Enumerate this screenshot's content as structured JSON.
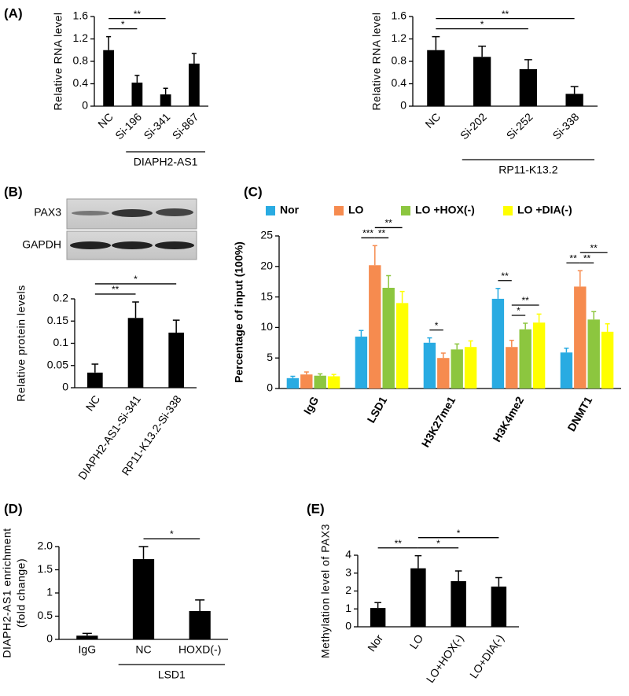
{
  "chart_data": [
    {
      "type": "bar",
      "panel": "(A)",
      "y_label": "Relative RNA level",
      "color": "#000000",
      "categories": [
        "NC",
        "Si-196",
        "Si-341",
        "Si-867"
      ],
      "values": [
        1.0,
        0.42,
        0.21,
        0.76
      ],
      "errors": [
        0.24,
        0.13,
        0.11,
        0.18
      ],
      "ylim": [
        0,
        1.6
      ],
      "yticks": [
        0,
        0.4,
        0.8,
        1.2,
        1.6
      ],
      "groups": [
        {
          "label": "DIAPH2-AS1",
          "span": [
            1,
            3
          ]
        }
      ],
      "annotations": [
        {
          "text": "*",
          "between": [
            0,
            1
          ]
        },
        {
          "text": "**",
          "between": [
            0,
            2
          ]
        }
      ]
    },
    {
      "type": "bar",
      "y_label": "Relative RNA level",
      "color": "#000000",
      "categories": [
        "NC",
        "Si-202",
        "Si-252",
        "Si-338"
      ],
      "values": [
        1.0,
        0.88,
        0.66,
        0.22
      ],
      "errors": [
        0.24,
        0.19,
        0.17,
        0.13
      ],
      "ylim": [
        0,
        1.6
      ],
      "yticks": [
        0,
        0.4,
        0.8,
        1.2,
        1.6
      ],
      "groups": [
        {
          "label": "RP11-K13.2",
          "span": [
            1,
            3
          ]
        }
      ],
      "annotations": [
        {
          "text": "*",
          "between": [
            0,
            2
          ]
        },
        {
          "text": "**",
          "between": [
            0,
            3
          ]
        }
      ]
    },
    {
      "type": "bar",
      "panel": "(B)",
      "y_label": "Relative protein levels",
      "color": "#000000",
      "blot_labels": [
        "PAX3",
        "GAPDH"
      ],
      "categories": [
        "NC",
        "DIAPH2-AS1-Si-341",
        "RP11-K13.2-Si-338"
      ],
      "values": [
        0.034,
        0.157,
        0.124
      ],
      "errors": [
        0.019,
        0.036,
        0.028
      ],
      "ylim": [
        0,
        0.2
      ],
      "yticks": [
        0,
        0.05,
        0.1,
        0.15,
        0.2
      ],
      "annotations": [
        {
          "text": "**",
          "between": [
            0,
            1
          ]
        },
        {
          "text": "*",
          "between": [
            0,
            2
          ]
        }
      ]
    },
    {
      "type": "grouped_bar",
      "panel": "(C)",
      "y_label": "Percentage of input (100%)",
      "categories": [
        "IgG",
        "LSD1",
        "H3K27me1",
        "H3K4me2",
        "DNMT1"
      ],
      "series": [
        {
          "name": "Nor",
          "color": "#29abe2",
          "values": [
            1.7,
            8.5,
            7.5,
            14.7,
            5.9
          ],
          "errors": [
            0.3,
            1.0,
            0.8,
            1.7,
            0.7
          ]
        },
        {
          "name": "LO",
          "color": "#f68b4f",
          "values": [
            2.3,
            20.2,
            5.0,
            6.8,
            16.7
          ],
          "errors": [
            0.4,
            3.2,
            0.8,
            1.1,
            2.6
          ]
        },
        {
          "name": "LO +HOX(-)",
          "color": "#8cc63f",
          "values": [
            2.1,
            16.5,
            6.4,
            9.7,
            11.3
          ],
          "errors": [
            0.3,
            2.0,
            0.9,
            1.0,
            1.3
          ]
        },
        {
          "name": "LO +DIA(-)",
          "color": "#ffff00",
          "values": [
            2.0,
            14.0,
            6.8,
            10.8,
            9.3
          ],
          "errors": [
            0.3,
            1.9,
            1.0,
            1.4,
            1.3
          ]
        }
      ],
      "ylim": [
        0,
        25
      ],
      "yticks": [
        0,
        5,
        10,
        15,
        20,
        25
      ],
      "annotations": [
        {
          "text": "***",
          "category": 1,
          "between": [
            0,
            1
          ]
        },
        {
          "text": "**",
          "category": 1,
          "between": [
            1,
            2
          ]
        },
        {
          "text": "**",
          "category": 1,
          "between": [
            1,
            3
          ]
        },
        {
          "text": "*",
          "category": 2,
          "between": [
            0,
            1
          ]
        },
        {
          "text": "**",
          "category": 3,
          "between": [
            0,
            1
          ]
        },
        {
          "text": "*",
          "category": 3,
          "between": [
            1,
            2
          ]
        },
        {
          "text": "**",
          "category": 3,
          "between": [
            1,
            3
          ]
        },
        {
          "text": "**",
          "category": 4,
          "between": [
            0,
            1
          ]
        },
        {
          "text": "**",
          "category": 4,
          "between": [
            1,
            2
          ]
        },
        {
          "text": "**",
          "category": 4,
          "between": [
            1,
            3
          ]
        }
      ]
    },
    {
      "type": "bar",
      "panel": "(D)",
      "y_label": [
        "DIAPH2-AS1 enrichment",
        "(fold change)"
      ],
      "color": "#000000",
      "categories": [
        "IgG",
        "NC",
        "HOXD(-)"
      ],
      "values": [
        0.08,
        1.73,
        0.61
      ],
      "errors": [
        0.05,
        0.27,
        0.24
      ],
      "ylim": [
        0,
        2
      ],
      "yticks": [
        0,
        0.5,
        1,
        1.5,
        {
          "value": 2,
          "label": "2.0"
        }
      ],
      "groups": [
        {
          "label": "LSD1",
          "span": [
            1,
            2
          ]
        }
      ],
      "annotations": [
        {
          "text": "*",
          "between": [
            1,
            2
          ]
        }
      ]
    },
    {
      "type": "bar",
      "panel": "(E)",
      "y_label": "Methylation  level of PAX3",
      "color": "#000000",
      "categories": [
        "Nor",
        "LO",
        "LO+HOX(-)",
        "LO+DIA(-)"
      ],
      "values": [
        1.05,
        3.27,
        2.55,
        2.25
      ],
      "errors": [
        0.3,
        0.7,
        0.57,
        0.5
      ],
      "ylim": [
        0,
        4
      ],
      "yticks": [
        0,
        1,
        2,
        3,
        4
      ],
      "annotations": [
        {
          "text": "**",
          "between": [
            0,
            1
          ]
        },
        {
          "text": "*",
          "between": [
            1,
            2
          ]
        },
        {
          "text": "*",
          "between": [
            1,
            3
          ]
        }
      ]
    }
  ]
}
